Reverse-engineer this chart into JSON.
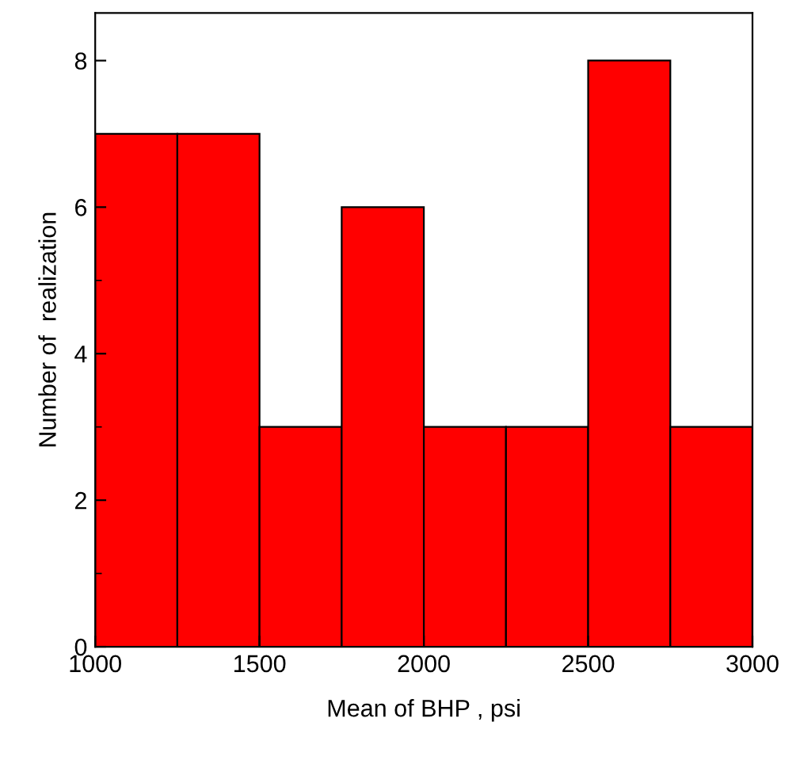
{
  "chart_data": {
    "type": "histogram",
    "xlabel": "Mean of BHP , psi",
    "ylabel": "Number of  realization",
    "bins": [
      1000,
      1250,
      1500,
      1750,
      2000,
      2250,
      2500,
      2750,
      3000
    ],
    "values": [
      7,
      7,
      3,
      6,
      3,
      3,
      8,
      3
    ],
    "color": "#ff0000",
    "xlim": [
      1000,
      3000
    ],
    "xticks": [
      1000,
      1500,
      2000,
      2500,
      3000
    ],
    "ylim": [
      0,
      8.65
    ],
    "yticks": [
      0,
      2,
      4,
      6,
      8
    ],
    "grid": false
  }
}
